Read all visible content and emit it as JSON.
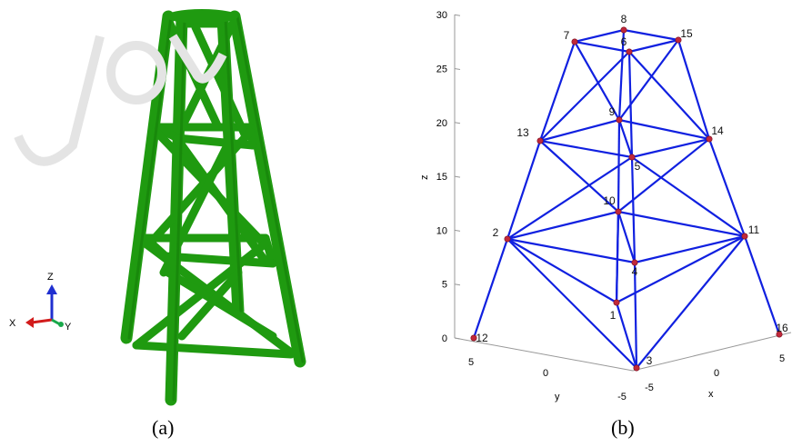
{
  "figure": {
    "captions": {
      "a": "(a)",
      "b": "(b)"
    }
  },
  "panel_a": {
    "triad": {
      "z": "Z",
      "x": "X",
      "y": "Y"
    },
    "colors": {
      "tower": "#1f9a10",
      "tower_dark": "#137a08",
      "z_axis": "#1f2fd0",
      "x_axis": "#d21c1c",
      "y_axis": "#19a84a"
    }
  },
  "panel_b": {
    "axes": {
      "z_label": "z",
      "y_label": "y",
      "x_label": "x",
      "z_ticks": [
        "0",
        "5",
        "10",
        "15",
        "20",
        "25",
        "30"
      ],
      "y_ticks": [
        "5",
        "0",
        "-5"
      ],
      "x_ticks": [
        "-5",
        "0",
        "5"
      ]
    },
    "nodes": [
      {
        "id": "1",
        "label": "1"
      },
      {
        "id": "2",
        "label": "2"
      },
      {
        "id": "3",
        "label": "3"
      },
      {
        "id": "4",
        "label": "4"
      },
      {
        "id": "5",
        "label": "5"
      },
      {
        "id": "6",
        "label": "6"
      },
      {
        "id": "7",
        "label": "7"
      },
      {
        "id": "8",
        "label": "8"
      },
      {
        "id": "9",
        "label": "9"
      },
      {
        "id": "10",
        "label": "10"
      },
      {
        "id": "11",
        "label": "11"
      },
      {
        "id": "12",
        "label": "12"
      },
      {
        "id": "13",
        "label": "13"
      },
      {
        "id": "14",
        "label": "14"
      },
      {
        "id": "15",
        "label": "15"
      },
      {
        "id": "16",
        "label": "16"
      }
    ],
    "members": [
      [
        "12",
        "2"
      ],
      [
        "2",
        "13"
      ],
      [
        "13",
        "7"
      ],
      [
        "3",
        "4"
      ],
      [
        "4",
        "5"
      ],
      [
        "5",
        "6"
      ],
      [
        "16",
        "11"
      ],
      [
        "11",
        "14"
      ],
      [
        "14",
        "15"
      ],
      [
        "2",
        "1"
      ],
      [
        "1",
        "11"
      ],
      [
        "2",
        "4"
      ],
      [
        "4",
        "11"
      ],
      [
        "2",
        "10"
      ],
      [
        "10",
        "11"
      ],
      [
        "1",
        "10"
      ],
      [
        "13",
        "5"
      ],
      [
        "5",
        "14"
      ],
      [
        "13",
        "9"
      ],
      [
        "9",
        "14"
      ],
      [
        "13",
        "10"
      ],
      [
        "10",
        "14"
      ],
      [
        "2",
        "5"
      ],
      [
        "5",
        "11"
      ],
      [
        "7",
        "6"
      ],
      [
        "6",
        "15"
      ],
      [
        "7",
        "8"
      ],
      [
        "8",
        "15"
      ],
      [
        "7",
        "9"
      ],
      [
        "9",
        "15"
      ],
      [
        "13",
        "6"
      ],
      [
        "6",
        "14"
      ],
      [
        "3",
        "2"
      ],
      [
        "3",
        "11"
      ],
      [
        "3",
        "1"
      ],
      [
        "1",
        "10"
      ],
      [
        "10",
        "9"
      ],
      [
        "9",
        "8"
      ],
      [
        "4",
        "10"
      ],
      [
        "5",
        "9"
      ]
    ],
    "colors": {
      "member": "#1020e0",
      "node": "#c0283a",
      "axis": "#999999"
    }
  }
}
